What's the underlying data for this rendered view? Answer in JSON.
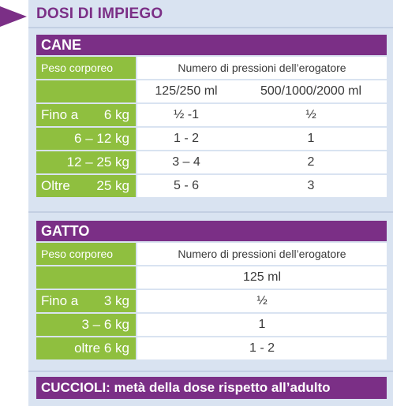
{
  "heading": "DOSI DI IMPIEGO",
  "colors": {
    "accent": "#7b2f86",
    "green": "#8fbf3f",
    "panel": "#d9e3f1"
  },
  "icons": {
    "heading_marker": "triangle-right-icon"
  },
  "cane": {
    "title": "CANE",
    "label_header": "Peso corporeo",
    "value_header": "Numero di pressioni dell’erogatore",
    "sizes": [
      "125/250 ml",
      "500/1000/2000 ml"
    ],
    "rows": [
      {
        "w1": "Fino a",
        "w2": "6 kg",
        "v1": "½ -1",
        "v2": "½"
      },
      {
        "w1": "",
        "w2": "6 – 12 kg",
        "v1": "1 - 2",
        "v2": "1"
      },
      {
        "w1": "",
        "w2": "12 – 25 kg",
        "v1": "3 – 4",
        "v2": "2"
      },
      {
        "w1": "Oltre",
        "w2": "25 kg",
        "v1": "5 - 6",
        "v2": "3"
      }
    ]
  },
  "gatto": {
    "title": "GATTO",
    "label_header": "Peso corporeo",
    "value_header": "Numero di pressioni dell’erogatore",
    "size": "125 ml",
    "rows": [
      {
        "w1": "Fino a",
        "w2": "3 kg",
        "v": "½"
      },
      {
        "w1": "",
        "w2": "3 – 6 kg",
        "v": "1"
      },
      {
        "w1": "",
        "w2": "oltre 6 kg",
        "v": "1 - 2"
      }
    ]
  },
  "footer": "CUCCIOLI: metà della dose rispetto all’adulto"
}
